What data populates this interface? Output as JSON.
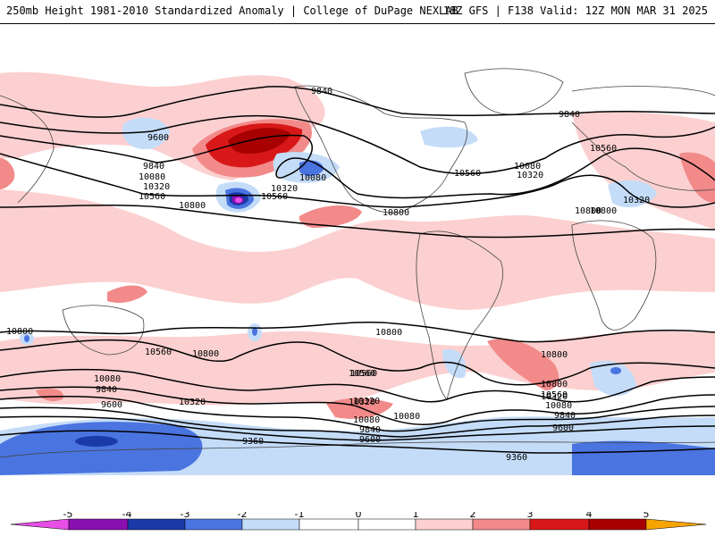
{
  "header": {
    "title_left": "250mb Height 1981-2010 Standardized Anomaly | College of DuPage NEXLAB",
    "title_right": "18Z GFS | F138 Valid: 12Z MON MAR 31 2025"
  },
  "colors": {
    "neg5": "#e64ee6",
    "neg4": "#8a0fb0",
    "neg3": "#1a3aa8",
    "neg2": "#4a74e0",
    "neg1": "#c4dcf8",
    "pos1": "#fcd0d0",
    "pos2": "#f28a8a",
    "pos3": "#d81818",
    "pos4": "#a80000",
    "pos5": "#f7a300",
    "contour": "#000000",
    "coast": "#444444"
  },
  "colorbar": {
    "ticks": [
      "-5",
      "-4",
      "-3",
      "-2",
      "-1",
      "0",
      "1",
      "2",
      "3",
      "4",
      "5"
    ]
  },
  "contour_labels": [
    "9840",
    "9600",
    "9840",
    "10080",
    "10320",
    "10560",
    "10080",
    "10320",
    "10560",
    "10800",
    "10800",
    "10560",
    "10080",
    "10320",
    "9840",
    "10560",
    "10800",
    "10080",
    "10320",
    "10800",
    "10800",
    "10800",
    "10560",
    "10800",
    "10560",
    "10800",
    "10080",
    "10320",
    "9840",
    "9600",
    "10320",
    "10560",
    "10320",
    "10080",
    "9840",
    "9600",
    "9360",
    "9360",
    "10800",
    "10560",
    "10320",
    "10080",
    "9840",
    "9600"
  ]
}
